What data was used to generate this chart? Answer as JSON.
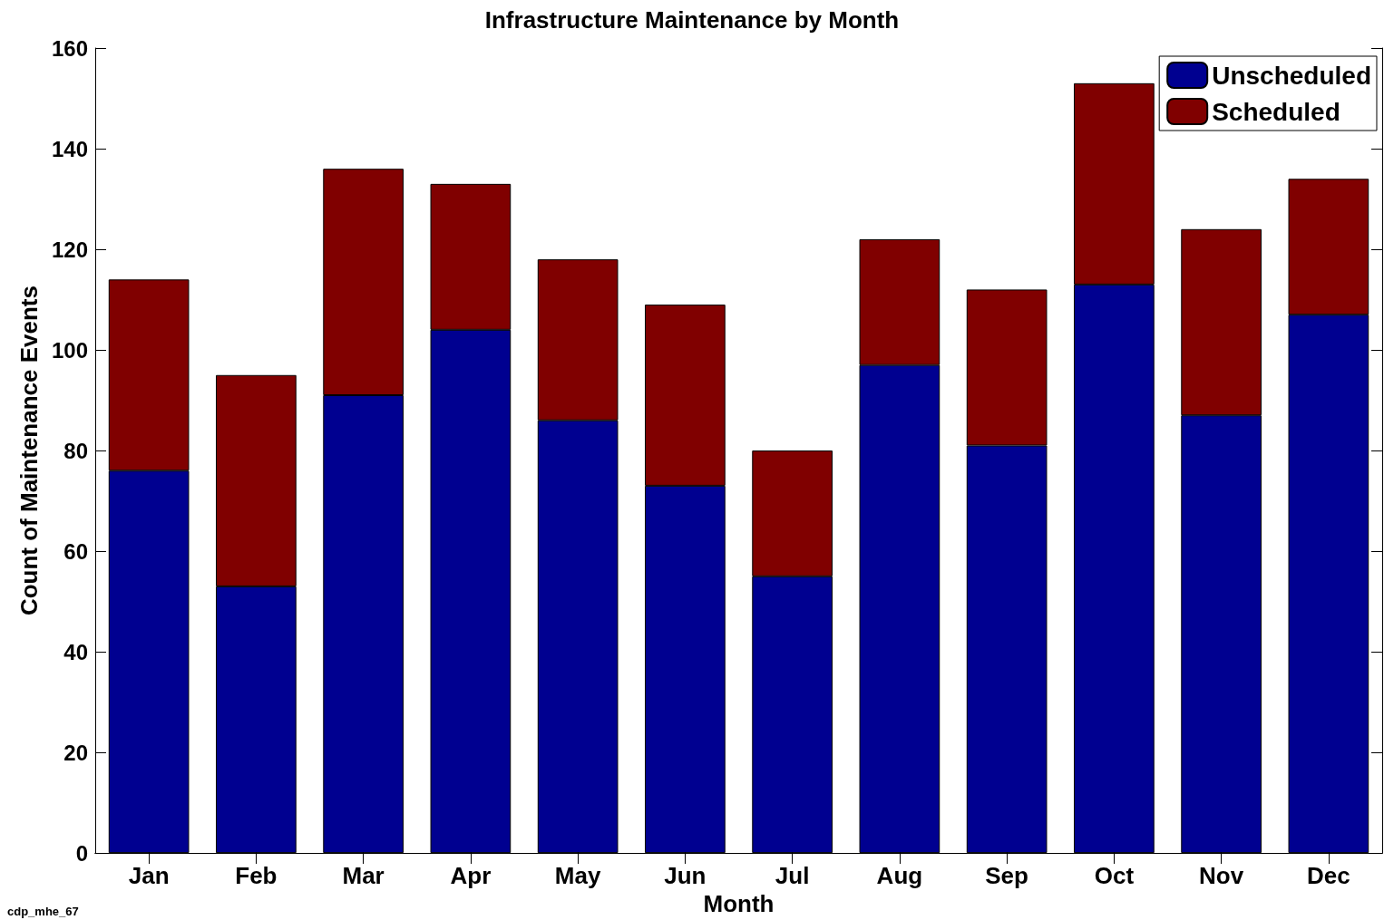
{
  "chart_data": {
    "type": "bar",
    "title": "Infrastructure Maintenance by Month",
    "xlabel": "Month",
    "ylabel": "Count of Maintenance Events",
    "categories": [
      "Jan",
      "Feb",
      "Mar",
      "Apr",
      "May",
      "Jun",
      "Jul",
      "Aug",
      "Sep",
      "Oct",
      "Nov",
      "Dec"
    ],
    "stacked": true,
    "series": [
      {
        "name": "Unscheduled",
        "color": "#000090",
        "values": [
          76,
          53,
          91,
          104,
          86,
          73,
          55,
          97,
          81,
          113,
          87,
          107
        ]
      },
      {
        "name": "Scheduled",
        "color": "#800000",
        "values": [
          38,
          42,
          45,
          29,
          32,
          36,
          25,
          25,
          31,
          40,
          37,
          27
        ]
      }
    ],
    "ylim": [
      0,
      160
    ],
    "yticks": [
      0,
      20,
      40,
      60,
      80,
      100,
      120,
      140,
      160
    ],
    "grid": false,
    "legend": "top right",
    "annotations": [
      "cdp_mhe_67"
    ]
  }
}
